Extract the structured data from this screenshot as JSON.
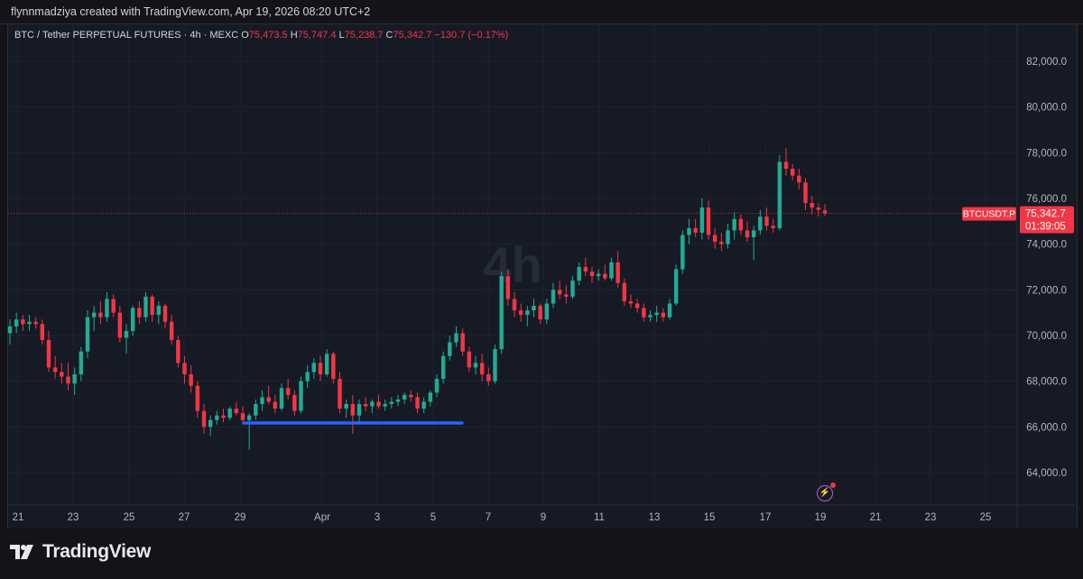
{
  "header": {
    "watermark_text": "flynnmadziya created with TradingView.com, Apr 19, 2026 08:20 UTC+2"
  },
  "legend": {
    "symbol": "BTC / Tether PERPETUAL FUTURES · 4h · MEXC",
    "o_label": "O",
    "o_value": "75,473.5",
    "h_label": "H",
    "h_value": "75,747.4",
    "l_label": "L",
    "l_value": "75,238.7",
    "c_label": "C",
    "c_value": "75,342.7",
    "change": "−130.7 (−0.17%)"
  },
  "chart_data": {
    "type": "candlestick",
    "title": "BTC / Tether PERPETUAL FUTURES · 4h · MEXC",
    "interval_watermark": "4h",
    "x_tick_labels": [
      "21",
      "23",
      "25",
      "27",
      "29",
      "Apr",
      "3",
      "5",
      "7",
      "9",
      "11",
      "13",
      "15",
      "17",
      "19",
      "21",
      "23",
      "25"
    ],
    "y_tick_labels": [
      "82,000.0",
      "80,000.0",
      "78,000.0",
      "76,000.0",
      "74,000.0",
      "72,000.0",
      "70,000.0",
      "68,000.0",
      "66,000.0",
      "64,000.0"
    ],
    "ylim": [
      62800,
      83600
    ],
    "current_price": {
      "symbol": "BTCUSDT.P",
      "price": "75,342.7",
      "countdown": "01:39:05",
      "value": 75342.7
    },
    "support_line": {
      "value": 66250,
      "start": "Mar 29",
      "end": "Apr 6",
      "color": "#2962ff"
    },
    "up_color": "#22ab94",
    "down_color": "#f23645",
    "candles": [
      [
        70100,
        70700,
        69600,
        70400
      ],
      [
        70400,
        71000,
        70100,
        70700
      ],
      [
        70700,
        70900,
        70200,
        70500
      ],
      [
        70500,
        70900,
        70200,
        70600
      ],
      [
        70600,
        70800,
        70300,
        70500
      ],
      [
        70500,
        70700,
        69600,
        69800
      ],
      [
        69800,
        70200,
        68400,
        68600
      ],
      [
        68600,
        69100,
        68100,
        68400
      ],
      [
        68400,
        68800,
        67900,
        68200
      ],
      [
        68200,
        68800,
        67600,
        67900
      ],
      [
        67900,
        68600,
        67400,
        68300
      ],
      [
        68300,
        69500,
        68000,
        69300
      ],
      [
        69300,
        71100,
        69000,
        70800
      ],
      [
        70800,
        71300,
        70200,
        71000
      ],
      [
        71000,
        71500,
        70500,
        70800
      ],
      [
        70800,
        71900,
        70600,
        71600
      ],
      [
        71600,
        71800,
        70800,
        71000
      ],
      [
        71000,
        71300,
        69700,
        69900
      ],
      [
        69900,
        70500,
        69200,
        70200
      ],
      [
        70200,
        71300,
        70000,
        71200
      ],
      [
        71200,
        71500,
        70500,
        70800
      ],
      [
        70800,
        71900,
        70600,
        71700
      ],
      [
        71700,
        71800,
        70600,
        70900
      ],
      [
        70900,
        71500,
        70500,
        71300
      ],
      [
        71300,
        71400,
        70300,
        70600
      ],
      [
        70600,
        70900,
        69600,
        69800
      ],
      [
        69800,
        70000,
        68600,
        68800
      ],
      [
        68800,
        69100,
        67900,
        68300
      ],
      [
        68300,
        68700,
        67500,
        67800
      ],
      [
        67800,
        68000,
        66400,
        66700
      ],
      [
        66700,
        67000,
        65700,
        66000
      ],
      [
        66000,
        66500,
        65600,
        66300
      ],
      [
        66300,
        66700,
        66100,
        66500
      ],
      [
        66500,
        66800,
        66200,
        66400
      ],
      [
        66400,
        66900,
        66300,
        66800
      ],
      [
        66800,
        67100,
        66500,
        66600
      ],
      [
        66600,
        66900,
        66100,
        66300
      ],
      [
        66300,
        66600,
        65000,
        66500
      ],
      [
        66500,
        67200,
        66300,
        67000
      ],
      [
        67000,
        67600,
        66700,
        67300
      ],
      [
        67300,
        67800,
        67000,
        67100
      ],
      [
        67100,
        67400,
        66600,
        66800
      ],
      [
        66800,
        67900,
        66700,
        67700
      ],
      [
        67700,
        68100,
        67200,
        67400
      ],
      [
        67400,
        67600,
        66500,
        66700
      ],
      [
        66700,
        68200,
        66600,
        68000
      ],
      [
        68000,
        68700,
        67700,
        68400
      ],
      [
        68400,
        69000,
        68100,
        68800
      ],
      [
        68800,
        69100,
        68000,
        68300
      ],
      [
        68300,
        69400,
        68200,
        69200
      ],
      [
        69200,
        69300,
        67900,
        68100
      ],
      [
        68100,
        68400,
        66600,
        66800
      ],
      [
        66800,
        67200,
        66400,
        67000
      ],
      [
        67000,
        67400,
        65700,
        66500
      ],
      [
        66500,
        67200,
        66200,
        67000
      ],
      [
        67000,
        67300,
        66700,
        66900
      ],
      [
        66900,
        67200,
        66600,
        67100
      ],
      [
        67100,
        67400,
        66800,
        66900
      ],
      [
        66900,
        67200,
        66700,
        67000
      ],
      [
        67000,
        67300,
        66800,
        67100
      ],
      [
        67100,
        67400,
        66900,
        67200
      ],
      [
        67200,
        67500,
        67000,
        67400
      ],
      [
        67400,
        67600,
        67100,
        67300
      ],
      [
        67300,
        67500,
        66600,
        66800
      ],
      [
        66800,
        67300,
        66600,
        67100
      ],
      [
        67100,
        67600,
        66900,
        67500
      ],
      [
        67500,
        68300,
        67300,
        68100
      ],
      [
        68100,
        69300,
        67900,
        69100
      ],
      [
        69100,
        70000,
        68900,
        69700
      ],
      [
        69700,
        70400,
        69500,
        70100
      ],
      [
        70100,
        70300,
        69100,
        69300
      ],
      [
        69300,
        69500,
        68400,
        68600
      ],
      [
        68600,
        69100,
        68300,
        68800
      ],
      [
        68800,
        69200,
        68000,
        68300
      ],
      [
        68300,
        68600,
        67800,
        68000
      ],
      [
        68000,
        69600,
        67900,
        69400
      ],
      [
        69400,
        72800,
        69200,
        72600
      ],
      [
        72600,
        72900,
        71300,
        71600
      ],
      [
        71600,
        71900,
        70800,
        71100
      ],
      [
        71100,
        71400,
        70600,
        70900
      ],
      [
        70900,
        71300,
        70400,
        71100
      ],
      [
        71100,
        71600,
        70800,
        71300
      ],
      [
        71300,
        71400,
        70500,
        70700
      ],
      [
        70700,
        71600,
        70500,
        71400
      ],
      [
        71400,
        72300,
        71200,
        72000
      ],
      [
        72000,
        72400,
        71600,
        71800
      ],
      [
        71800,
        72200,
        71400,
        71700
      ],
      [
        71700,
        72600,
        71600,
        72400
      ],
      [
        72400,
        73200,
        72200,
        73000
      ],
      [
        73000,
        73400,
        72600,
        72800
      ],
      [
        72800,
        73000,
        72300,
        72600
      ],
      [
        72600,
        72900,
        72400,
        72700
      ],
      [
        72700,
        73100,
        72400,
        72500
      ],
      [
        72500,
        73400,
        72400,
        73200
      ],
      [
        73200,
        73700,
        72100,
        72300
      ],
      [
        72300,
        72500,
        71300,
        71500
      ],
      [
        71500,
        71800,
        71200,
        71400
      ],
      [
        71400,
        71600,
        71000,
        71200
      ],
      [
        71200,
        71400,
        70600,
        70800
      ],
      [
        70800,
        71100,
        70600,
        70900
      ],
      [
        70900,
        71300,
        70600,
        71000
      ],
      [
        71000,
        71200,
        70600,
        70800
      ],
      [
        70800,
        71600,
        70700,
        71400
      ],
      [
        71400,
        73100,
        71300,
        72900
      ],
      [
        72900,
        74600,
        72700,
        74400
      ],
      [
        74400,
        75100,
        74000,
        74700
      ],
      [
        74700,
        75100,
        74300,
        74500
      ],
      [
        74500,
        76000,
        74200,
        75600
      ],
      [
        75600,
        75900,
        74200,
        74400
      ],
      [
        74400,
        74700,
        73800,
        74100
      ],
      [
        74100,
        74500,
        73700,
        74000
      ],
      [
        74000,
        74900,
        73800,
        74600
      ],
      [
        74600,
        75400,
        74200,
        75100
      ],
      [
        75100,
        75300,
        74400,
        74600
      ],
      [
        74600,
        75000,
        74100,
        74300
      ],
      [
        74300,
        74800,
        73300,
        74600
      ],
      [
        74600,
        75500,
        74400,
        75200
      ],
      [
        75200,
        75600,
        74600,
        74800
      ],
      [
        74800,
        75100,
        74500,
        74700
      ],
      [
        74700,
        77900,
        74600,
        77600
      ],
      [
        77600,
        78200,
        77000,
        77300
      ],
      [
        77300,
        77500,
        76800,
        77000
      ],
      [
        77000,
        77300,
        76400,
        76700
      ],
      [
        76700,
        76900,
        75500,
        75800
      ],
      [
        75800,
        76100,
        75300,
        75600
      ],
      [
        75600,
        75800,
        75200,
        75500
      ],
      [
        75473.5,
        75747.4,
        75238.7,
        75342.7
      ]
    ]
  }
}
